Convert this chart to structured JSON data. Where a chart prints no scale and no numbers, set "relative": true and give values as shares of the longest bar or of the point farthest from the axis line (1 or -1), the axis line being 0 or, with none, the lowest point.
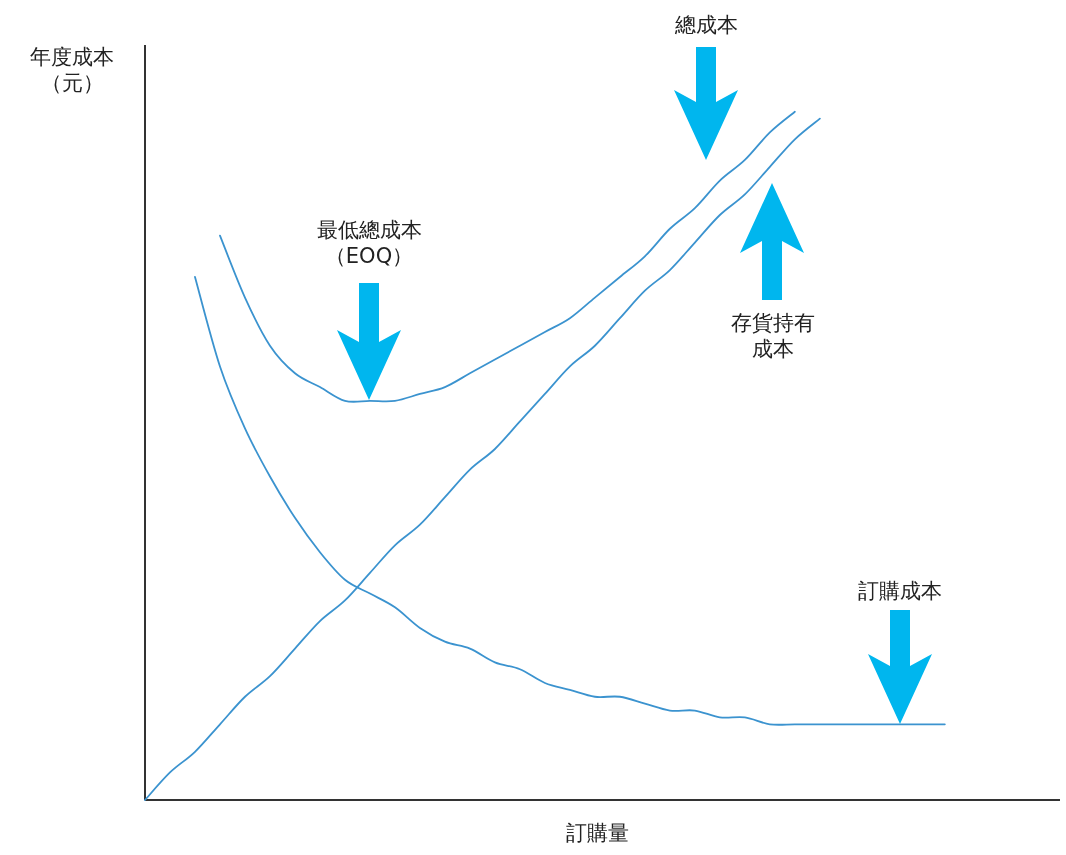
{
  "chart_data": {
    "type": "line",
    "relative": true,
    "xlabel": "訂購量",
    "ylabel": "年度成本（元）",
    "categories": [
      null,
      null,
      null,
      null,
      null,
      null,
      null,
      null,
      null,
      null,
      null,
      null,
      null,
      null,
      null,
      null,
      null,
      null,
      null,
      null,
      null,
      null,
      null,
      null,
      null,
      null,
      null,
      null,
      null,
      null,
      null,
      null,
      null
    ],
    "series": [
      {
        "color": "#3b93cf",
        "values": [
          null,
          null,
          null,
          0.82,
          0.73,
          0.66,
          0.62,
          0.6,
          0.58,
          0.58,
          0.58,
          0.59,
          0.6,
          0.62,
          0.64,
          0.66,
          0.68,
          0.7,
          0.73,
          0.76,
          0.79,
          0.83,
          0.86,
          0.9,
          0.93,
          0.97,
          1,
          null,
          null,
          null,
          null,
          null,
          null
        ]
      },
      {
        "color": "#3b93cf",
        "values": [
          0,
          0.04,
          0.07,
          0.11,
          0.15,
          0.18,
          0.22,
          0.26,
          0.29,
          0.33,
          0.37,
          0.4,
          0.44,
          0.48,
          0.51,
          0.55,
          0.59,
          0.63,
          0.66,
          0.7,
          0.74,
          0.77,
          0.81,
          0.85,
          0.88,
          0.92,
          0.96,
          0.99,
          null,
          null,
          null,
          null,
          null
        ]
      },
      {
        "color": "#3b93cf",
        "values": [
          null,
          null,
          0.76,
          0.63,
          0.54,
          0.47,
          0.41,
          0.36,
          0.32,
          0.3,
          0.28,
          0.25,
          0.23,
          0.22,
          0.2,
          0.19,
          0.17,
          0.16,
          0.15,
          0.15,
          0.14,
          0.13,
          0.13,
          0.12,
          0.12,
          0.11,
          0.11,
          0.11,
          0.11,
          0.11,
          0.11,
          0.11,
          0.11
        ]
      }
    ],
    "annotations": [
      "總成本",
      "最低總成本（EOQ）",
      "存貨持有成本",
      "訂購成本"
    ],
    "marker": "none",
    "line_style": "solid"
  }
}
